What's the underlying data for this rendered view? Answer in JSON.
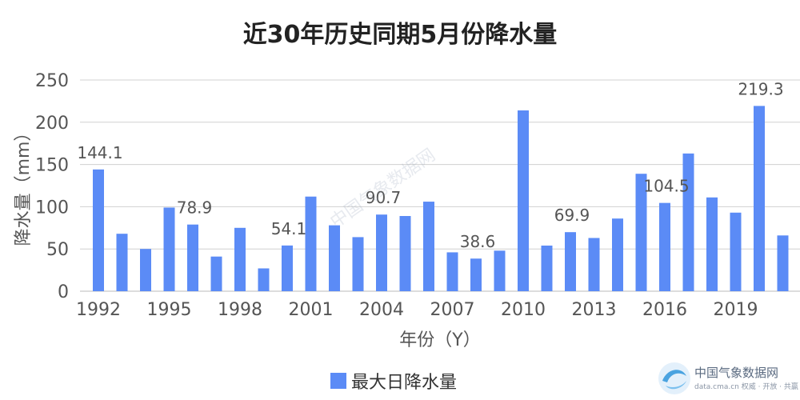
{
  "chart_data": {
    "type": "bar",
    "title": "近30年历史同期5月份降水量",
    "xlabel": "年份（Y）",
    "ylabel": "降水量（mm）",
    "ylim": [
      0,
      250
    ],
    "yticks": [
      0,
      50,
      100,
      150,
      200,
      250
    ],
    "grid": true,
    "legend_position": "bottom",
    "categories": [
      1992,
      1993,
      1994,
      1995,
      1996,
      1997,
      1998,
      1999,
      2000,
      2001,
      2002,
      2003,
      2004,
      2005,
      2006,
      2007,
      2008,
      2009,
      2010,
      2011,
      2012,
      2013,
      2014,
      2015,
      2016,
      2017,
      2018,
      2019,
      2020,
      2021
    ],
    "xtick_labels": [
      "1992",
      "1995",
      "1998",
      "2001",
      "2004",
      "2007",
      "2010",
      "2013",
      "2016",
      "2019"
    ],
    "series": [
      {
        "name": "最大日降水量",
        "color": "#5b8bf6",
        "values": [
          144.1,
          68,
          50,
          99,
          78.9,
          41,
          75,
          27,
          54.1,
          112,
          78,
          64,
          90.7,
          89,
          106,
          46,
          38.6,
          48,
          214,
          54,
          69.9,
          63,
          86,
          139,
          104.5,
          163,
          111,
          93,
          219.3,
          66
        ]
      }
    ],
    "data_labels": [
      {
        "category": 1992,
        "text": "144.1"
      },
      {
        "category": 1996,
        "text": "78.9"
      },
      {
        "category": 2000,
        "text": "54.1"
      },
      {
        "category": 2004,
        "text": "90.7"
      },
      {
        "category": 2008,
        "text": "38.6"
      },
      {
        "category": 2012,
        "text": "69.9"
      },
      {
        "category": 2016,
        "text": "104.5"
      },
      {
        "category": 2020,
        "text": "219.3"
      }
    ]
  },
  "watermark": {
    "name": "中国气象数据网",
    "url": "data.cma.cn",
    "tagline": "data.cma.cn 权威 · 开放 · 共赢",
    "center_text": "中国气象数据网"
  }
}
